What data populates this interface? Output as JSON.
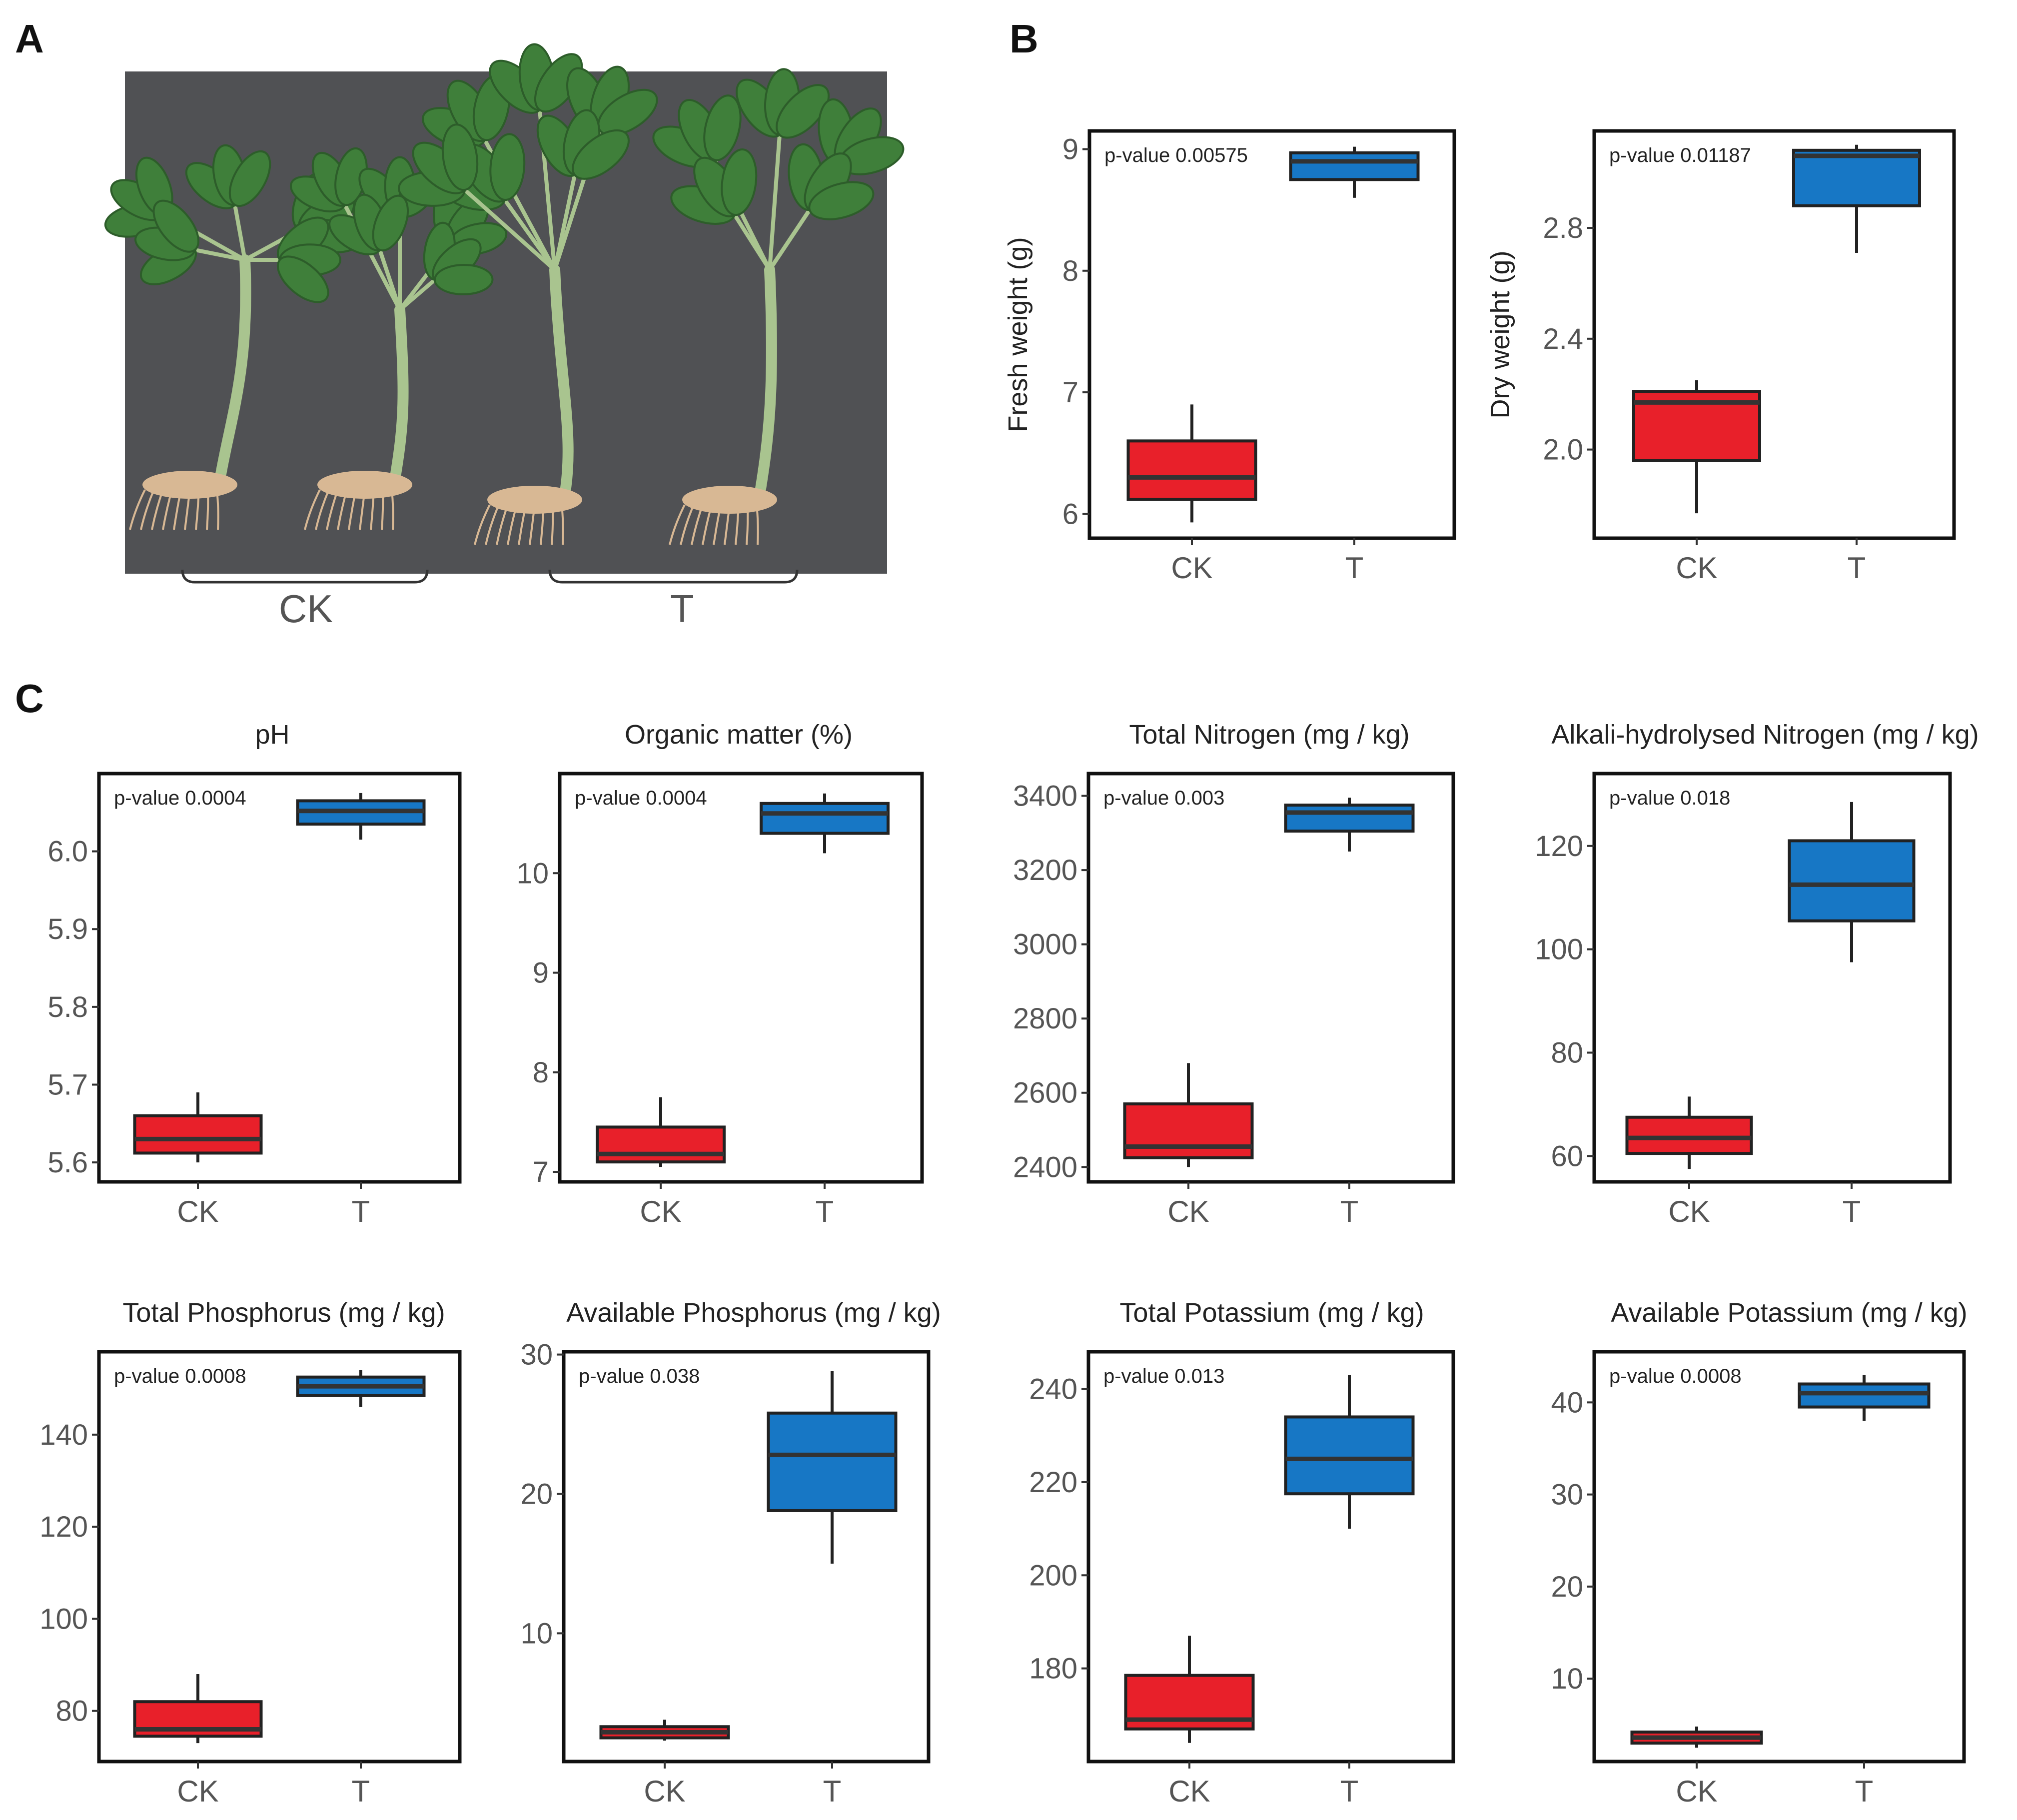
{
  "panels": {
    "a": "A",
    "b": "B",
    "c": "C"
  },
  "photo": {
    "group_ck": "CK",
    "group_t": "T",
    "background_color": "#505154",
    "leaf_color": "#3f7f3a",
    "stem_color": "#a9c48f",
    "root_color": "#d8b894"
  },
  "colors": {
    "ck": "#e8202a",
    "t": "#1777c5",
    "median": "#333333",
    "frame": "#111111"
  },
  "chart_data": [
    {
      "id": "fresh",
      "type": "box",
      "title": "",
      "xlabel": "",
      "ylabel": "Fresh weight (g)",
      "categories": [
        "CK",
        "T"
      ],
      "annotation": "p-value 0.00575",
      "ylim": [
        5.8,
        9.15
      ],
      "ticks": [
        6,
        7,
        8,
        9
      ],
      "tick_labels": [
        "6",
        "7",
        "8",
        "9"
      ],
      "boxes": [
        {
          "whisker_low": 5.93,
          "q1": 6.12,
          "median": 6.3,
          "q3": 6.6,
          "whisker_high": 6.9
        },
        {
          "whisker_low": 8.6,
          "q1": 8.75,
          "median": 8.9,
          "q3": 8.97,
          "whisker_high": 9.02
        }
      ]
    },
    {
      "id": "dry",
      "type": "box",
      "title": "",
      "xlabel": "",
      "ylabel": "Dry weight (g)",
      "categories": [
        "CK",
        "T"
      ],
      "annotation": "p-value 0.01187",
      "ylim": [
        1.68,
        3.15
      ],
      "ticks": [
        2.0,
        2.4,
        2.8
      ],
      "tick_labels": [
        "2.0",
        "2.4",
        "2.8"
      ],
      "boxes": [
        {
          "whisker_low": 1.77,
          "q1": 1.96,
          "median": 2.17,
          "q3": 2.21,
          "whisker_high": 2.25
        },
        {
          "whisker_low": 2.71,
          "q1": 2.88,
          "median": 3.06,
          "q3": 3.08,
          "whisker_high": 3.1
        }
      ]
    },
    {
      "id": "ph",
      "type": "box",
      "title": "pH",
      "xlabel": "",
      "ylabel": "",
      "categories": [
        "CK",
        "T"
      ],
      "annotation": "p-value 0.0004",
      "ylim": [
        5.575,
        6.1
      ],
      "ticks": [
        5.6,
        5.7,
        5.8,
        5.9,
        6.0
      ],
      "tick_labels": [
        "5.6",
        "5.7",
        "5.8",
        "5.9",
        "6.0"
      ],
      "boxes": [
        {
          "whisker_low": 5.6,
          "q1": 5.612,
          "median": 5.63,
          "q3": 5.66,
          "whisker_high": 5.69
        },
        {
          "whisker_low": 6.015,
          "q1": 6.035,
          "median": 6.052,
          "q3": 6.065,
          "whisker_high": 6.075
        }
      ]
    },
    {
      "id": "om",
      "type": "box",
      "title": "Organic matter (%)",
      "xlabel": "",
      "ylabel": "",
      "categories": [
        "CK",
        "T"
      ],
      "annotation": "p-value 0.0004",
      "ylim": [
        6.9,
        11.0
      ],
      "ticks": [
        7,
        8,
        9,
        10
      ],
      "tick_labels": [
        "7",
        "8",
        "9",
        "10"
      ],
      "boxes": [
        {
          "whisker_low": 7.05,
          "q1": 7.1,
          "median": 7.18,
          "q3": 7.45,
          "whisker_high": 7.75
        },
        {
          "whisker_low": 10.2,
          "q1": 10.4,
          "median": 10.6,
          "q3": 10.7,
          "whisker_high": 10.8
        }
      ]
    },
    {
      "id": "tn",
      "type": "box",
      "title": "Total Nitrogen (mg / kg)",
      "xlabel": "",
      "ylabel": "",
      "categories": [
        "CK",
        "T"
      ],
      "annotation": "p-value 0.003",
      "ylim": [
        2360,
        3460
      ],
      "ticks": [
        2400,
        2600,
        2800,
        3000,
        3200,
        3400
      ],
      "tick_labels": [
        "2400",
        "2600",
        "2800",
        "3000",
        "3200",
        "3400"
      ],
      "boxes": [
        {
          "whisker_low": 2400,
          "q1": 2425,
          "median": 2455,
          "q3": 2570,
          "whisker_high": 2680
        },
        {
          "whisker_low": 3250,
          "q1": 3305,
          "median": 3355,
          "q3": 3375,
          "whisker_high": 3395
        }
      ]
    },
    {
      "id": "ahn",
      "type": "box",
      "title": "Alkali-hydrolysed Nitrogen (mg / kg)",
      "xlabel": "",
      "ylabel": "",
      "categories": [
        "CK",
        "T"
      ],
      "annotation": "p-value 0.018",
      "ylim": [
        55,
        134
      ],
      "ticks": [
        60,
        80,
        100,
        120
      ],
      "tick_labels": [
        "60",
        "80",
        "100",
        "120"
      ],
      "boxes": [
        {
          "whisker_low": 57.5,
          "q1": 60.5,
          "median": 63.5,
          "q3": 67.5,
          "whisker_high": 71.5
        },
        {
          "whisker_low": 97.5,
          "q1": 105.5,
          "median": 112.5,
          "q3": 121,
          "whisker_high": 128.5
        }
      ]
    },
    {
      "id": "tp",
      "type": "box",
      "title": "Total Phosphorus (mg / kg)",
      "xlabel": "",
      "ylabel": "",
      "categories": [
        "CK",
        "T"
      ],
      "annotation": "p-value 0.0008",
      "ylim": [
        69,
        158
      ],
      "ticks": [
        80,
        100,
        120,
        140
      ],
      "tick_labels": [
        "80",
        "100",
        "120",
        "140"
      ],
      "boxes": [
        {
          "whisker_low": 73,
          "q1": 74.5,
          "median": 76,
          "q3": 82,
          "whisker_high": 88
        },
        {
          "whisker_low": 146,
          "q1": 148.5,
          "median": 150.5,
          "q3": 152.5,
          "whisker_high": 154
        }
      ]
    },
    {
      "id": "ap",
      "type": "box",
      "title": "Available Phosphorus (mg / kg)",
      "xlabel": "",
      "ylabel": "",
      "categories": [
        "CK",
        "T"
      ],
      "annotation": "p-value 0.038",
      "ylim": [
        0.8,
        30.2
      ],
      "ticks": [
        10,
        20,
        30
      ],
      "tick_labels": [
        "10",
        "20",
        "30"
      ],
      "boxes": [
        {
          "whisker_low": 2.3,
          "q1": 2.5,
          "median": 2.9,
          "q3": 3.3,
          "whisker_high": 3.8
        },
        {
          "whisker_low": 15.0,
          "q1": 18.8,
          "median": 22.8,
          "q3": 25.8,
          "whisker_high": 28.8
        }
      ]
    },
    {
      "id": "tk",
      "type": "box",
      "title": "Total Potassium (mg / kg)",
      "xlabel": "",
      "ylabel": "",
      "categories": [
        "CK",
        "T"
      ],
      "annotation": "p-value 0.013",
      "ylim": [
        160,
        248
      ],
      "ticks": [
        180,
        200,
        220,
        240
      ],
      "tick_labels": [
        "180",
        "200",
        "220",
        "240"
      ],
      "boxes": [
        {
          "whisker_low": 164,
          "q1": 167,
          "median": 169,
          "q3": 178.5,
          "whisker_high": 187
        },
        {
          "whisker_low": 210,
          "q1": 217.5,
          "median": 225,
          "q3": 234,
          "whisker_high": 243
        }
      ]
    },
    {
      "id": "ak",
      "type": "box",
      "title": "Available Potassium (mg / kg)",
      "xlabel": "",
      "ylabel": "",
      "categories": [
        "CK",
        "T"
      ],
      "annotation": "p-value 0.0008",
      "ylim": [
        1.0,
        45.5
      ],
      "ticks": [
        10,
        20,
        30,
        40
      ],
      "tick_labels": [
        "10",
        "20",
        "30",
        "40"
      ],
      "boxes": [
        {
          "whisker_low": 2.5,
          "q1": 3.0,
          "median": 3.6,
          "q3": 4.2,
          "whisker_high": 4.8
        },
        {
          "whisker_low": 38.0,
          "q1": 39.5,
          "median": 41.0,
          "q3": 42.0,
          "whisker_high": 43.0
        }
      ]
    }
  ]
}
